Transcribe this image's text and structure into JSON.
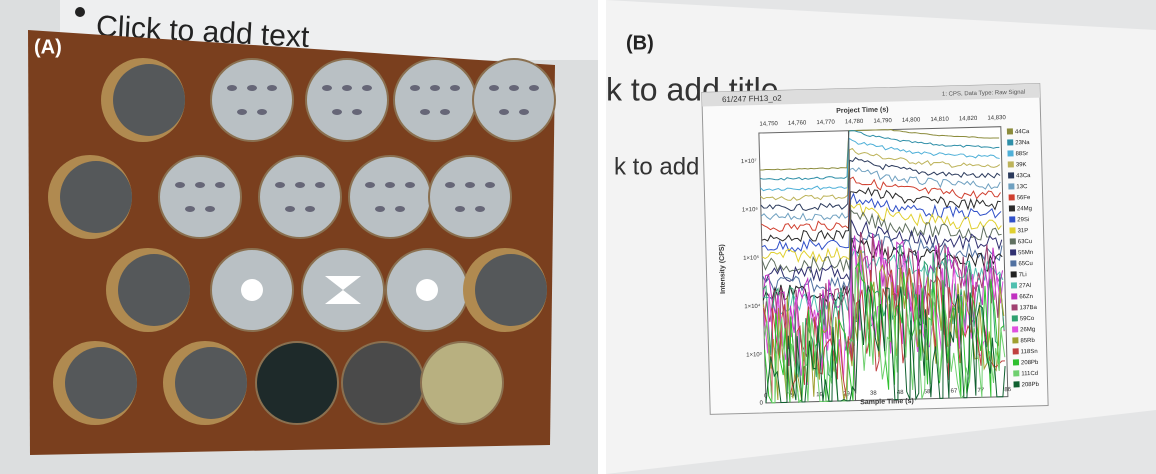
{
  "panel_a": {
    "label": "(A)",
    "slide_text": "Click to add text"
  },
  "panel_b": {
    "label": "(B)",
    "slide_title": "k to add title",
    "slide_text": "k to add te",
    "chart": {
      "window_title": "61/247 FH13_o2",
      "top_axis_title": "Project Time (s)",
      "info": "1: CPS, Data Type: Raw Signal",
      "top_ticks": [
        "14,750",
        "14,760",
        "14,770",
        "14,780",
        "14,790",
        "14,800",
        "14,810",
        "14,820",
        "14,830"
      ],
      "y_title": "Intensity (CPS)",
      "y_ticks": [
        "1×10⁷",
        "1×10⁶",
        "1×10⁵",
        "1×10⁴",
        "1×10³",
        "0"
      ],
      "x_title": "Sample Time (s)",
      "x_ticks": [
        "0",
        "9",
        "19",
        "29",
        "38",
        "48",
        "58",
        "67",
        "77",
        "86"
      ],
      "legend": [
        {
          "label": "44Ca",
          "color": "#8c8c3c"
        },
        {
          "label": "23Na",
          "color": "#2f8fa8"
        },
        {
          "label": "88Sr",
          "color": "#4fb0d8"
        },
        {
          "label": "39K",
          "color": "#bdb35a"
        },
        {
          "label": "43Ca",
          "color": "#2b3a5c"
        },
        {
          "label": "13C",
          "color": "#6fa0c0"
        },
        {
          "label": "56Fe",
          "color": "#d04030"
        },
        {
          "label": "24Mg",
          "color": "#2a2a2a"
        },
        {
          "label": "29Si",
          "color": "#3050c8"
        },
        {
          "label": "31P",
          "color": "#e0d030"
        },
        {
          "label": "63Cu",
          "color": "#607060"
        },
        {
          "label": "55Mn",
          "color": "#303070"
        },
        {
          "label": "65Cu",
          "color": "#5070a0"
        },
        {
          "label": "7Li",
          "color": "#202020"
        },
        {
          "label": "27Al",
          "color": "#50c0b0"
        },
        {
          "label": "66Zn",
          "color": "#c030c0"
        },
        {
          "label": "137Ba",
          "color": "#a04070"
        },
        {
          "label": "59Co",
          "color": "#30a070"
        },
        {
          "label": "26Mg",
          "color": "#e050e0"
        },
        {
          "label": "85Rb",
          "color": "#a0a030"
        },
        {
          "label": "118Sn",
          "color": "#c04040"
        },
        {
          "label": "208Pb",
          "color": "#30c030"
        },
        {
          "label": "111Cd",
          "color": "#70d070"
        },
        {
          "label": "208Pb",
          "color": "#106030"
        }
      ]
    }
  }
}
